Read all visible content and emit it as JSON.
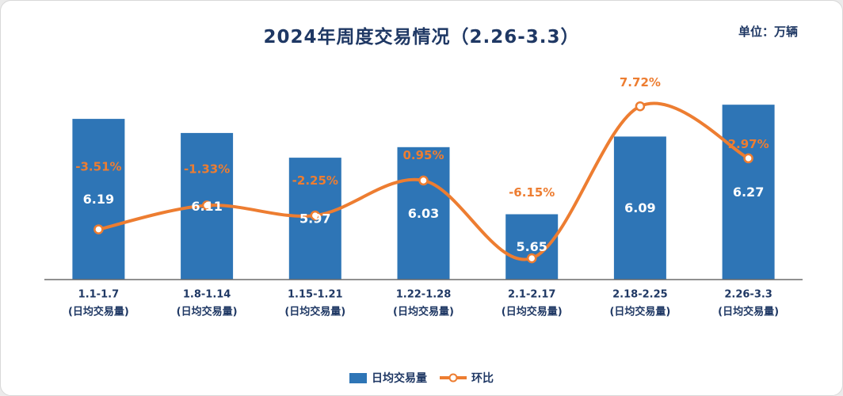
{
  "title": "2024年周度交易情况（2.26-3.3）",
  "unit_label": "单位：万辆",
  "legend": {
    "bar_label": "日均交易量",
    "line_label": "环比"
  },
  "colors": {
    "title_text": "#1F3864",
    "category_text": "#1F3864",
    "axis_line": "#6b6b6b",
    "bar_fill": "#2E75B6",
    "line_stroke": "#ED7D31"
  },
  "chart_data": {
    "type": "bar+line",
    "title": "2024年周度交易情况（2.26-3.3）",
    "unit": "万辆",
    "categories": [
      "1.1-1.7",
      "1.8-1.14",
      "1.15-1.21",
      "1.22-1.28",
      "2.1-2.17",
      "2.18-2.25",
      "2.26-3.3"
    ],
    "category_subtitle": "(日均交易量)",
    "series": [
      {
        "name": "日均交易量",
        "type": "bar",
        "color": "#2E75B6",
        "values": [
          6.19,
          6.11,
          5.97,
          6.03,
          5.65,
          6.09,
          6.27
        ],
        "value_labels": [
          "6.19",
          "6.11",
          "5.97",
          "6.03",
          "5.65",
          "6.09",
          "6.27"
        ],
        "label_color": "#ffffff"
      },
      {
        "name": "环比",
        "type": "line",
        "smooth": true,
        "color": "#ED7D31",
        "unit": "%",
        "values": [
          -3.51,
          -1.33,
          -2.25,
          0.95,
          -6.15,
          7.72,
          2.97
        ],
        "value_labels": [
          "-3.51%",
          "-1.33%",
          "-2.25%",
          "0.95%",
          "-6.15%",
          "7.72%",
          "2.97%"
        ]
      }
    ],
    "layout_hints": {
      "legend_position": "bottom",
      "grid": false,
      "value_axes_hidden": true,
      "bar_axis_baseline": 5.28,
      "marker": "open-circle"
    }
  }
}
